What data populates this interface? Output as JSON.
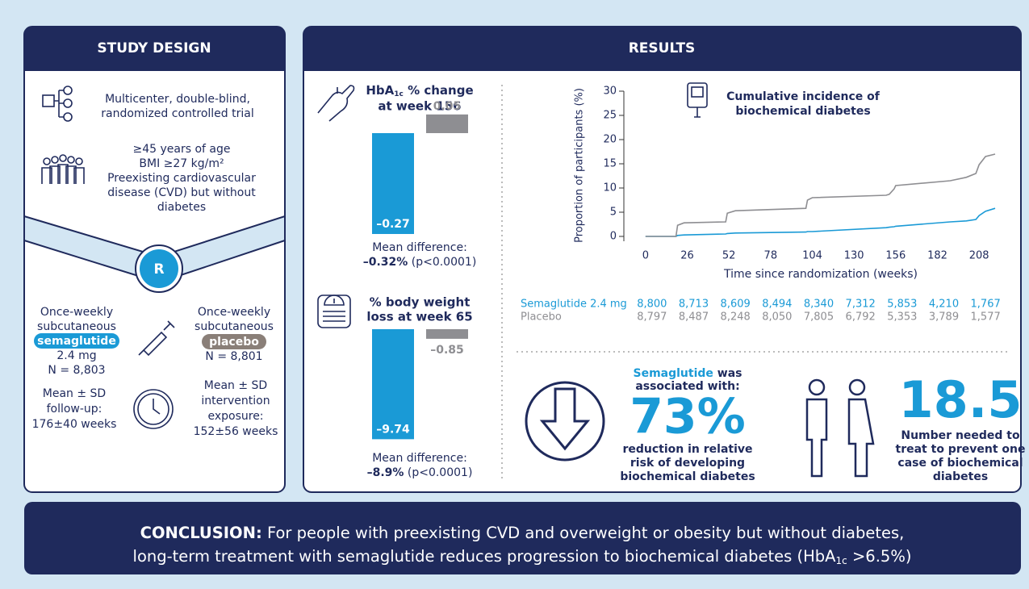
{
  "study_design": {
    "title": "STUDY DESIGN",
    "design": [
      "Multicenter, double-blind,",
      "randomized controlled trial"
    ],
    "population": [
      "≥45 years of age",
      "BMI ≥27 kg/m²",
      "Preexisting cardiovascular",
      "disease (CVD) but without",
      "diabetes"
    ],
    "randomization": "R",
    "semaglutide_arm": {
      "lines": [
        "Once-weekly",
        "subcutaneous"
      ],
      "drug": "semaglutide",
      "dose": "2.4 mg",
      "n": "N = 8,803"
    },
    "placebo_arm": {
      "lines": [
        "Once-weekly",
        "subcutaneous"
      ],
      "drug": "placebo",
      "n": "N = 8,801"
    },
    "follow_up": [
      "Mean ± SD",
      "follow-up:",
      "176±40 weeks"
    ],
    "exposure": [
      "Mean ± SD",
      "intervention",
      "exposure:",
      "152±56 weeks"
    ]
  },
  "results": {
    "title": "RESULTS"
  },
  "chart_data": [
    {
      "type": "bar",
      "title_parts": [
        "HbA",
        "1c",
        " % change",
        "at week 156"
      ],
      "values": [
        -0.27,
        0.05
      ],
      "value_labels": [
        "–0.27",
        "0.05"
      ],
      "colors": [
        "#1a9ad6",
        "#8e8e92"
      ],
      "mean_difference": {
        "label": "Mean difference:",
        "value": "–0.32%",
        "p": "(p<0.0001)"
      }
    },
    {
      "type": "bar",
      "title_parts": [
        "% body weight",
        "loss at week 65"
      ],
      "values": [
        -9.74,
        -0.85
      ],
      "value_labels": [
        "–9.74",
        "–0.85"
      ],
      "colors": [
        "#1a9ad6",
        "#8e8e92"
      ],
      "mean_difference": {
        "label": "Mean difference:",
        "value": "–8.9%",
        "p": "(p<0.0001)"
      }
    },
    {
      "type": "line",
      "title": [
        "Cumulative incidence of",
        "biochemical diabetes"
      ],
      "ylabel": "Proportion of participants (%)",
      "xlabel": "Time since randomization (weeks)",
      "x": [
        0,
        19,
        20,
        24,
        50,
        51,
        56,
        100,
        101,
        104,
        150,
        152,
        155,
        156,
        190,
        200,
        206,
        208,
        212,
        218
      ],
      "series": [
        {
          "name": "Semaglutide 2.4 mg",
          "color": "#1a9ad6",
          "values": [
            0,
            0,
            0.2,
            0.3,
            0.5,
            0.6,
            0.7,
            0.9,
            1,
            1,
            1.8,
            1.9,
            2,
            2.1,
            3,
            3.2,
            3.5,
            4.3,
            5.2,
            5.8
          ],
          "at_risk": [
            "8,800",
            "8,713",
            "8,609",
            "8,494",
            "8,340",
            "7,312",
            "5,853",
            "4,210",
            "1,767"
          ]
        },
        {
          "name": "Placebo",
          "color": "#8e8e92",
          "values": [
            0,
            0,
            2.3,
            2.8,
            3,
            4.8,
            5.3,
            5.8,
            7.5,
            8,
            8.5,
            8.7,
            9.8,
            10.5,
            11.5,
            12.2,
            13,
            14.8,
            16.5,
            17
          ],
          "at_risk": [
            "8,797",
            "8,487",
            "8,248",
            "8,050",
            "7,805",
            "6,792",
            "5,353",
            "3,789",
            "1,577"
          ]
        }
      ],
      "xlim": [
        -13,
        220
      ],
      "xticks": [
        0,
        26,
        52,
        78,
        104,
        130,
        156,
        182,
        208
      ],
      "ylim": [
        -1,
        31
      ],
      "yticks": [
        0,
        5,
        10,
        15,
        20,
        25,
        30
      ]
    }
  ],
  "relative_risk": {
    "drug": "Semaglutide",
    "text": [
      "was",
      "associated with:"
    ],
    "value": "73%",
    "desc": [
      "reduction in relative",
      "risk of developing",
      "biochemical diabetes"
    ]
  },
  "nnt": {
    "value": "18.5",
    "desc": [
      "Number needed to",
      "treat to prevent one",
      "case of biochemical",
      "diabetes"
    ]
  },
  "conclusion": {
    "label": "CONCLUSION:",
    "line1": "For people with preexisting CVD and overweight or obesity but without diabetes,",
    "line2": [
      "long-term treatment with semaglutide reduces progression to biochemical diabetes (HbA",
      "1c",
      " >6.5%)"
    ]
  }
}
